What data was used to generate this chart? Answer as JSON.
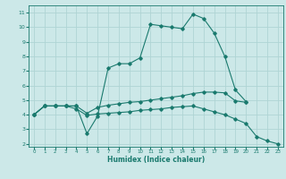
{
  "xlabel": "Humidex (Indice chaleur)",
  "background_color": "#cce8e8",
  "line_color": "#1a7a6e",
  "grid_color": "#afd4d4",
  "xlim": [
    -0.5,
    23.5
  ],
  "ylim": [
    1.8,
    11.5
  ],
  "xticks": [
    0,
    1,
    2,
    3,
    4,
    5,
    6,
    7,
    8,
    9,
    10,
    11,
    12,
    13,
    14,
    15,
    16,
    17,
    18,
    19,
    20,
    21,
    22,
    23
  ],
  "yticks": [
    2,
    3,
    4,
    5,
    6,
    7,
    8,
    9,
    10,
    11
  ],
  "line1_x": [
    0,
    1,
    2,
    3,
    4,
    5,
    6,
    7,
    8,
    9,
    10,
    11,
    12,
    13,
    14,
    15,
    16,
    17,
    18,
    19,
    20
  ],
  "line1_y": [
    4.0,
    4.6,
    4.6,
    4.6,
    4.6,
    2.7,
    3.9,
    7.2,
    7.5,
    7.5,
    7.9,
    10.2,
    10.1,
    10.0,
    9.9,
    10.9,
    10.6,
    9.6,
    8.0,
    5.7,
    4.9
  ],
  "line2_x": [
    0,
    1,
    2,
    3,
    4,
    5,
    6,
    7,
    8,
    9,
    10,
    11,
    12,
    13,
    14,
    15,
    16,
    17,
    18,
    19,
    20
  ],
  "line2_y": [
    4.0,
    4.6,
    4.6,
    4.6,
    4.6,
    4.1,
    4.5,
    4.65,
    4.75,
    4.85,
    4.9,
    5.0,
    5.1,
    5.2,
    5.3,
    5.45,
    5.55,
    5.55,
    5.5,
    4.95,
    4.85
  ],
  "line3_x": [
    0,
    1,
    2,
    3,
    4,
    5,
    6,
    7,
    8,
    9,
    10,
    11,
    12,
    13,
    14,
    15,
    16,
    17,
    18,
    19,
    20,
    21,
    22,
    23
  ],
  "line3_y": [
    4.0,
    4.6,
    4.6,
    4.6,
    4.4,
    3.95,
    4.05,
    4.1,
    4.15,
    4.2,
    4.3,
    4.35,
    4.4,
    4.5,
    4.55,
    4.6,
    4.4,
    4.2,
    4.0,
    3.7,
    3.4,
    2.5,
    2.2,
    2.0
  ]
}
